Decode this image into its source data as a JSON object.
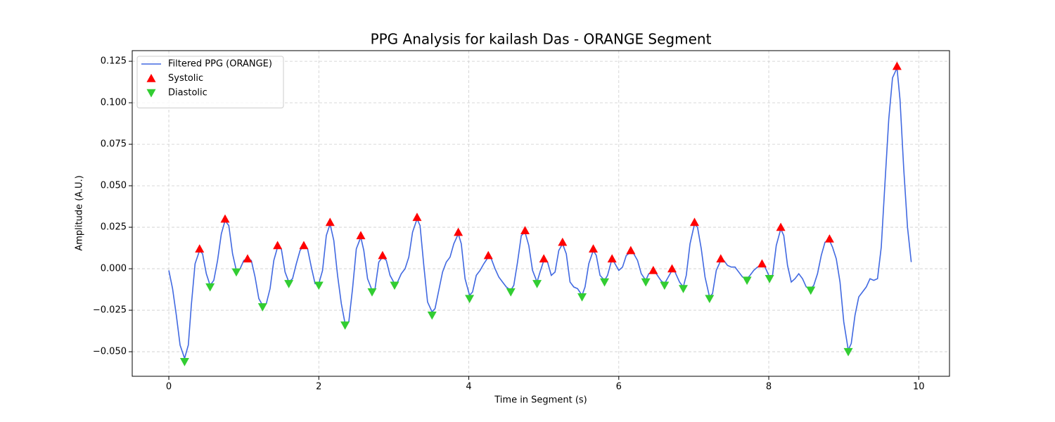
{
  "chart_data": {
    "type": "line",
    "title": "PPG Analysis for kailash Das - ORANGE Segment",
    "xlabel": "Time in Segment (s)",
    "ylabel": "Amplitude (A.U.)",
    "xlim": [
      -0.488,
      10.41
    ],
    "ylim": [
      -0.0648,
      0.1314
    ],
    "xticks": [
      0,
      2,
      4,
      6,
      8,
      10
    ],
    "yticks": [
      {
        "value": -0.05,
        "label": "−0.050"
      },
      {
        "value": -0.025,
        "label": "−0.025"
      },
      {
        "value": 0,
        "label": "0.000"
      },
      {
        "value": 0.025,
        "label": "0.025"
      },
      {
        "value": 0.05,
        "label": "0.050"
      },
      {
        "value": 0.075,
        "label": "0.075"
      },
      {
        "value": 0.1,
        "label": "0.100"
      },
      {
        "value": 0.125,
        "label": "0.125"
      }
    ],
    "grid": true,
    "legend": "upper left",
    "series": [
      {
        "name": "Filtered PPG (ORANGE)",
        "color": "#4169e1",
        "marker": "line",
        "x": [
          0,
          0.05,
          0.1,
          0.15,
          0.21,
          0.26,
          0.3,
          0.35,
          0.41,
          0.45,
          0.5,
          0.55,
          0.6,
          0.65,
          0.7,
          0.75,
          0.8,
          0.85,
          0.9,
          0.95,
          1.0,
          1.05,
          1.1,
          1.15,
          1.2,
          1.25,
          1.3,
          1.35,
          1.4,
          1.45,
          1.5,
          1.55,
          1.6,
          1.65,
          1.7,
          1.75,
          1.8,
          1.85,
          1.9,
          1.95,
          2.0,
          2.05,
          2.1,
          2.15,
          2.2,
          2.25,
          2.3,
          2.35,
          2.4,
          2.45,
          2.5,
          2.56,
          2.6,
          2.65,
          2.71,
          2.75,
          2.8,
          2.85,
          2.9,
          2.95,
          3.01,
          3.05,
          3.1,
          3.15,
          3.2,
          3.25,
          3.31,
          3.35,
          3.4,
          3.45,
          3.51,
          3.55,
          3.6,
          3.65,
          3.7,
          3.75,
          3.8,
          3.86,
          3.9,
          3.95,
          4.01,
          4.05,
          4.1,
          4.15,
          4.2,
          4.26,
          4.3,
          4.35,
          4.4,
          4.45,
          4.5,
          4.56,
          4.6,
          4.65,
          4.7,
          4.75,
          4.8,
          4.85,
          4.91,
          4.95,
          5.0,
          5.05,
          5.1,
          5.15,
          5.2,
          5.25,
          5.3,
          5.35,
          5.4,
          5.45,
          5.51,
          5.55,
          5.6,
          5.66,
          5.7,
          5.75,
          5.81,
          5.85,
          5.91,
          5.95,
          6.0,
          6.05,
          6.1,
          6.16,
          6.2,
          6.25,
          6.3,
          6.36,
          6.4,
          6.46,
          6.5,
          6.56,
          6.61,
          6.66,
          6.71,
          6.75,
          6.81,
          6.86,
          6.9,
          6.95,
          7.01,
          7.05,
          7.1,
          7.15,
          7.21,
          7.25,
          7.3,
          7.36,
          7.4,
          7.45,
          7.5,
          7.55,
          7.6,
          7.65,
          7.71,
          7.75,
          7.8,
          7.85,
          7.91,
          7.95,
          8.01,
          8.05,
          8.1,
          8.16,
          8.2,
          8.25,
          8.3,
          8.35,
          8.4,
          8.45,
          8.5,
          8.56,
          8.6,
          8.65,
          8.7,
          8.75,
          8.81,
          8.85,
          8.9,
          8.95,
          9.0,
          9.06,
          9.1,
          9.15,
          9.2,
          9.25,
          9.3,
          9.35,
          9.4,
          9.45,
          9.5,
          9.55,
          9.6,
          9.65,
          9.71,
          9.75,
          9.8,
          9.85,
          9.9
        ],
        "values": [
          -0.001,
          -0.012,
          -0.028,
          -0.046,
          -0.054,
          -0.046,
          -0.022,
          0.003,
          0.011,
          0.009,
          -0.003,
          -0.01,
          -0.007,
          0.005,
          0.021,
          0.029,
          0.026,
          0.009,
          -0.001,
          0.0,
          0.005,
          0.006,
          0.005,
          -0.005,
          -0.018,
          -0.022,
          -0.021,
          -0.012,
          0.005,
          0.013,
          0.012,
          -0.002,
          -0.008,
          -0.006,
          0.003,
          0.011,
          0.014,
          0.012,
          0.001,
          -0.009,
          -0.009,
          -0.001,
          0.02,
          0.027,
          0.017,
          -0.004,
          -0.021,
          -0.033,
          -0.032,
          -0.012,
          0.012,
          0.019,
          0.011,
          -0.006,
          -0.013,
          -0.012,
          0.004,
          0.007,
          0.005,
          -0.004,
          -0.009,
          -0.008,
          -0.003,
          0.0,
          0.007,
          0.022,
          0.03,
          0.026,
          0.002,
          -0.02,
          -0.026,
          -0.024,
          -0.013,
          -0.002,
          0.004,
          0.007,
          0.015,
          0.021,
          0.015,
          -0.006,
          -0.016,
          -0.014,
          -0.004,
          -0.001,
          0.003,
          0.007,
          0.006,
          0.0,
          -0.005,
          -0.008,
          -0.011,
          -0.013,
          -0.01,
          0.004,
          0.02,
          0.022,
          0.014,
          -0.001,
          -0.008,
          -0.002,
          0.005,
          0.004,
          -0.004,
          -0.002,
          0.011,
          0.015,
          0.009,
          -0.008,
          -0.011,
          -0.012,
          -0.016,
          -0.011,
          0.003,
          0.011,
          0.008,
          -0.004,
          -0.007,
          -0.004,
          0.006,
          0.003,
          -0.001,
          0.001,
          0.008,
          0.01,
          0.009,
          0.005,
          -0.003,
          -0.007,
          -0.003,
          -0.002,
          -0.003,
          -0.007,
          -0.009,
          -0.005,
          -0.001,
          -0.002,
          -0.008,
          -0.011,
          -0.004,
          0.015,
          0.027,
          0.025,
          0.012,
          -0.005,
          -0.017,
          -0.015,
          -0.001,
          0.005,
          0.005,
          0.002,
          0.001,
          0.001,
          -0.002,
          -0.005,
          -0.006,
          -0.004,
          -0.001,
          0.001,
          0.002,
          0.001,
          -0.005,
          -0.004,
          0.014,
          0.024,
          0.02,
          0.002,
          -0.008,
          -0.006,
          -0.003,
          -0.006,
          -0.011,
          -0.012,
          -0.01,
          -0.003,
          0.008,
          0.016,
          0.017,
          0.013,
          0.006,
          -0.008,
          -0.032,
          -0.049,
          -0.045,
          -0.028,
          -0.017,
          -0.014,
          -0.011,
          -0.006,
          -0.007,
          -0.006,
          0.013,
          0.052,
          0.09,
          0.115,
          0.121,
          0.102,
          0.06,
          0.025,
          0.004
        ]
      },
      {
        "name": "Systolic",
        "color": "#ff0000",
        "marker": "^",
        "x": [
          0.41,
          0.75,
          1.05,
          1.45,
          1.8,
          2.15,
          2.56,
          2.85,
          3.31,
          3.86,
          4.26,
          4.75,
          5.0,
          5.25,
          5.66,
          5.91,
          6.16,
          6.46,
          6.71,
          7.01,
          7.36,
          7.91,
          8.16,
          8.81,
          9.71
        ],
        "values": [
          0.012,
          0.03,
          0.006,
          0.014,
          0.014,
          0.028,
          0.02,
          0.008,
          0.031,
          0.022,
          0.008,
          0.023,
          0.006,
          0.016,
          0.012,
          0.006,
          0.011,
          -0.001,
          0.0,
          0.028,
          0.006,
          0.003,
          0.025,
          0.018,
          0.122
        ]
      },
      {
        "name": "Diastolic",
        "color": "#32cd32",
        "marker": "v",
        "x": [
          0.21,
          0.55,
          0.9,
          1.25,
          1.6,
          2.0,
          2.35,
          2.71,
          3.01,
          3.51,
          4.01,
          4.56,
          4.91,
          5.51,
          5.81,
          6.36,
          6.61,
          6.86,
          7.21,
          7.71,
          8.01,
          8.56,
          9.06
        ],
        "values": [
          -0.056,
          -0.011,
          -0.002,
          -0.023,
          -0.009,
          -0.01,
          -0.034,
          -0.014,
          -0.01,
          -0.028,
          -0.018,
          -0.014,
          -0.009,
          -0.017,
          -0.008,
          -0.008,
          -0.01,
          -0.012,
          -0.018,
          -0.007,
          -0.006,
          -0.013,
          -0.05
        ]
      }
    ]
  }
}
